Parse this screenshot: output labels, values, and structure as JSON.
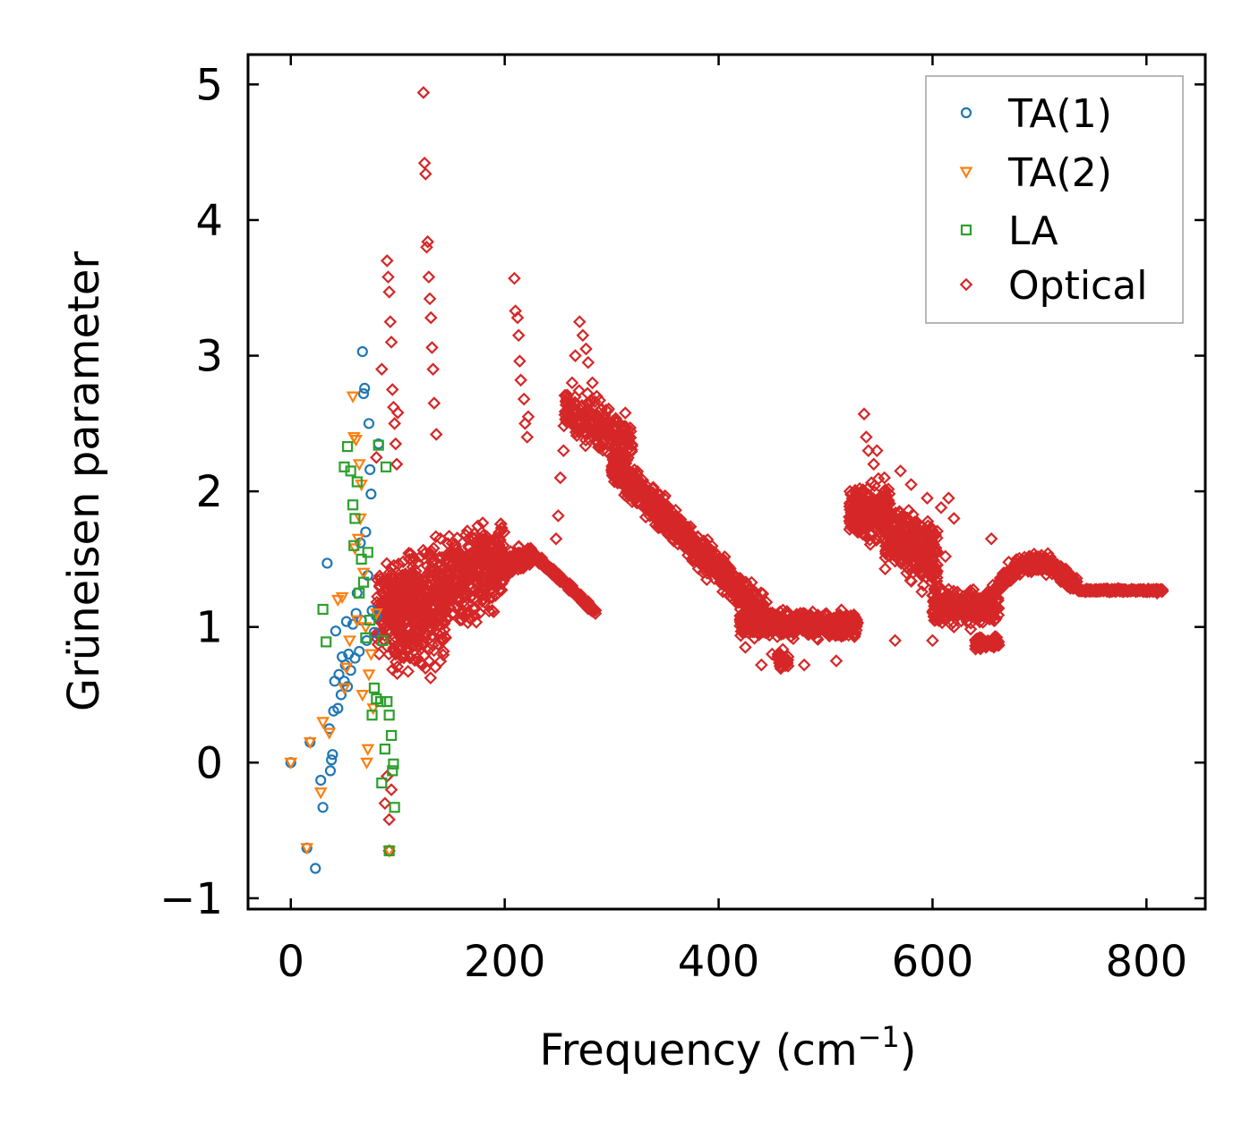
{
  "chart_data": {
    "type": "scatter",
    "xlabel": "Frequency (cm",
    "xlabel_sup": "−1",
    "xlabel_close": ")",
    "ylabel": "Grüneisen parameter",
    "xlim": [
      -40,
      855
    ],
    "ylim": [
      -1.08,
      5.22
    ],
    "x_ticks": [
      0,
      200,
      400,
      600,
      800
    ],
    "x_tick_labels": [
      "0",
      "200",
      "400",
      "600",
      "800"
    ],
    "y_ticks": [
      -1,
      0,
      1,
      2,
      3,
      4,
      5
    ],
    "y_tick_labels": [
      "−1",
      "0",
      "1",
      "2",
      "3",
      "4",
      "5"
    ],
    "legend_position": "top-right",
    "series": [
      {
        "name": "TA(1)",
        "marker": "circle",
        "color": "#1f77b4",
        "points": [
          [
            0,
            0
          ],
          [
            15,
            -0.63
          ],
          [
            18,
            0.15
          ],
          [
            23,
            -0.78
          ],
          [
            28,
            -0.13
          ],
          [
            30,
            -0.33
          ],
          [
            34,
            1.47
          ],
          [
            36,
            0.25
          ],
          [
            37,
            -0.06
          ],
          [
            38,
            0.02
          ],
          [
            39,
            0.06
          ],
          [
            40,
            0.38
          ],
          [
            41,
            0.6
          ],
          [
            42,
            0.97
          ],
          [
            44,
            0.4
          ],
          [
            45,
            0.65
          ],
          [
            47,
            0.5
          ],
          [
            48,
            0.78
          ],
          [
            50,
            0.6
          ],
          [
            51,
            0.72
          ],
          [
            52,
            1.04
          ],
          [
            53,
            0.56
          ],
          [
            54,
            0.8
          ],
          [
            56,
            0.68
          ],
          [
            58,
            1.02
          ],
          [
            60,
            0.77
          ],
          [
            61,
            1.1
          ],
          [
            62,
            1.25
          ],
          [
            64,
            0.82
          ],
          [
            65,
            1.62
          ],
          [
            66,
            1.05
          ],
          [
            67,
            3.03
          ],
          [
            68,
            2.72
          ],
          [
            69,
            2.76
          ],
          [
            70,
            1.7
          ],
          [
            71,
            0.9
          ],
          [
            72,
            1.38
          ],
          [
            73,
            2.5
          ],
          [
            74,
            2.16
          ],
          [
            75,
            1.98
          ],
          [
            76,
            1.12
          ],
          [
            78,
            0.96
          ],
          [
            80,
            1.08
          ],
          [
            82,
            2.35
          ]
        ]
      },
      {
        "name": "TA(2)",
        "marker": "triangle-down",
        "color": "#ff7f0e",
        "points": [
          [
            0,
            0
          ],
          [
            15,
            -0.63
          ],
          [
            18,
            0.15
          ],
          [
            28,
            -0.22
          ],
          [
            30,
            0.3
          ],
          [
            36,
            0.22
          ],
          [
            44,
            1.2
          ],
          [
            48,
            1.22
          ],
          [
            50,
            0.55
          ],
          [
            52,
            0.7
          ],
          [
            55,
            0.9
          ],
          [
            58,
            2.7
          ],
          [
            59,
            2.4
          ],
          [
            60,
            1.58
          ],
          [
            61,
            2.38
          ],
          [
            62,
            1.05
          ],
          [
            63,
            1.65
          ],
          [
            64,
            2.2
          ],
          [
            65,
            1.8
          ],
          [
            66,
            2.05
          ],
          [
            67,
            0.5
          ],
          [
            68,
            1.4
          ],
          [
            70,
            1.0
          ],
          [
            71,
            0.0
          ],
          [
            72,
            0.1
          ],
          [
            73,
            0.65
          ],
          [
            75,
            0.8
          ],
          [
            77,
            0.4
          ],
          [
            80,
            1.1
          ],
          [
            92,
            -0.65
          ]
        ]
      },
      {
        "name": "LA",
        "marker": "square",
        "color": "#2ca02c",
        "points": [
          [
            30,
            1.13
          ],
          [
            33,
            0.89
          ],
          [
            50,
            2.18
          ],
          [
            53,
            2.33
          ],
          [
            56,
            2.15
          ],
          [
            58,
            1.9
          ],
          [
            59,
            1.6
          ],
          [
            60,
            1.8
          ],
          [
            62,
            2.07
          ],
          [
            64,
            1.25
          ],
          [
            66,
            1.5
          ],
          [
            68,
            1.33
          ],
          [
            70,
            0.92
          ],
          [
            72,
            1.55
          ],
          [
            74,
            1.05
          ],
          [
            76,
            0.35
          ],
          [
            78,
            0.55
          ],
          [
            80,
            0.47
          ],
          [
            82,
            2.34
          ],
          [
            84,
            0.45
          ],
          [
            85,
            -0.15
          ],
          [
            86,
            0.9
          ],
          [
            88,
            0.1
          ],
          [
            89,
            2.18
          ],
          [
            90,
            0.45
          ],
          [
            92,
            0.35
          ],
          [
            94,
            0.2
          ],
          [
            95,
            -0.06
          ],
          [
            96,
            -0.01
          ],
          [
            97,
            -0.33
          ],
          [
            92,
            -0.65
          ]
        ]
      },
      {
        "name": "Optical",
        "marker": "diamond",
        "color": "#d62728",
        "generated": true,
        "points": [
          [
            124,
            4.94
          ],
          [
            125,
            4.42
          ],
          [
            126,
            4.34
          ],
          [
            127,
            3.8
          ],
          [
            128,
            3.84
          ],
          [
            129,
            3.58
          ],
          [
            130,
            3.42
          ],
          [
            131,
            3.28
          ],
          [
            132,
            3.06
          ],
          [
            133,
            2.9
          ],
          [
            134,
            2.65
          ],
          [
            136,
            2.42
          ],
          [
            209,
            3.57
          ],
          [
            210,
            3.33
          ],
          [
            212,
            3.28
          ],
          [
            213,
            3.15
          ],
          [
            214,
            2.96
          ],
          [
            215,
            2.82
          ],
          [
            218,
            2.68
          ],
          [
            219,
            2.5
          ],
          [
            221,
            2.4
          ],
          [
            222,
            2.55
          ],
          [
            90,
            3.7
          ],
          [
            91,
            3.58
          ],
          [
            92,
            3.47
          ],
          [
            93,
            3.25
          ],
          [
            94,
            3.1
          ],
          [
            95,
            2.75
          ],
          [
            96,
            2.62
          ],
          [
            97,
            2.5
          ],
          [
            98,
            2.35
          ],
          [
            99,
            2.2
          ],
          [
            100,
            2.58
          ],
          [
            85,
            2.9
          ],
          [
            80,
            2.25
          ],
          [
            88,
            -0.3
          ],
          [
            90,
            -0.1
          ],
          [
            92,
            -0.42
          ],
          [
            94,
            -0.2
          ],
          [
            92,
            -0.65
          ],
          [
            248,
            1.65
          ],
          [
            250,
            1.82
          ],
          [
            252,
            2.1
          ],
          [
            255,
            2.3
          ],
          [
            260,
            2.6
          ],
          [
            263,
            2.8
          ],
          [
            266,
            3.0
          ],
          [
            270,
            3.25
          ],
          [
            273,
            3.15
          ],
          [
            276,
            3.05
          ],
          [
            278,
            2.95
          ],
          [
            282,
            2.8
          ],
          [
            286,
            2.7
          ],
          [
            290,
            2.6
          ],
          [
            536,
            2.57
          ],
          [
            538,
            2.4
          ],
          [
            540,
            2.3
          ],
          [
            545,
            2.2
          ],
          [
            548,
            2.3
          ],
          [
            555,
            2.1
          ],
          [
            570,
            2.15
          ],
          [
            580,
            2.05
          ],
          [
            595,
            1.95
          ],
          [
            608,
            1.88
          ],
          [
            615,
            1.95
          ],
          [
            620,
            1.8
          ],
          [
            612,
            1.52
          ],
          [
            655,
            1.65
          ],
          [
            640,
            1.2
          ],
          [
            620,
            1.0
          ],
          [
            565,
            0.9
          ],
          [
            600,
            0.9
          ],
          [
            510,
            0.75
          ],
          [
            480,
            0.72
          ],
          [
            450,
            0.8
          ],
          [
            440,
            0.72
          ],
          [
            425,
            0.85
          ],
          [
            472,
            0.98
          ],
          [
            760,
            1.28
          ],
          [
            770,
            1.27
          ],
          [
            780,
            1.27
          ],
          [
            790,
            1.26
          ],
          [
            800,
            1.26
          ],
          [
            810,
            1.25
          ]
        ]
      }
    ]
  }
}
